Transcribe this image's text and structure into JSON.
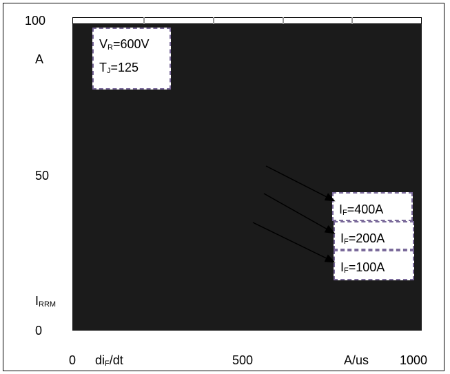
{
  "chart_data": {
    "type": "line",
    "title": "",
    "y_axis": {
      "ticks": [
        "100",
        "50",
        "0"
      ],
      "unit": "A",
      "label_main": "I",
      "label_sub": "RRM"
    },
    "x_axis": {
      "ticks": [
        "0",
        "500",
        "1000"
      ],
      "label_main": "di",
      "label_sub": "F",
      "label_end": "/dt",
      "unit": "A/us"
    },
    "conditions": [
      {
        "main": "V",
        "sub": "R",
        "value": "=600V"
      },
      {
        "main": "T",
        "sub": "J",
        "value": "=125"
      }
    ],
    "series_labels": [
      {
        "main": "I",
        "sub": "F",
        "value": "=400A"
      },
      {
        "main": "I",
        "sub": "F",
        "value": "=200A"
      },
      {
        "main": "I",
        "sub": "F",
        "value": "=100A"
      }
    ],
    "xlim": [
      0,
      1000
    ],
    "ylim": [
      0,
      100
    ],
    "grid": false
  }
}
